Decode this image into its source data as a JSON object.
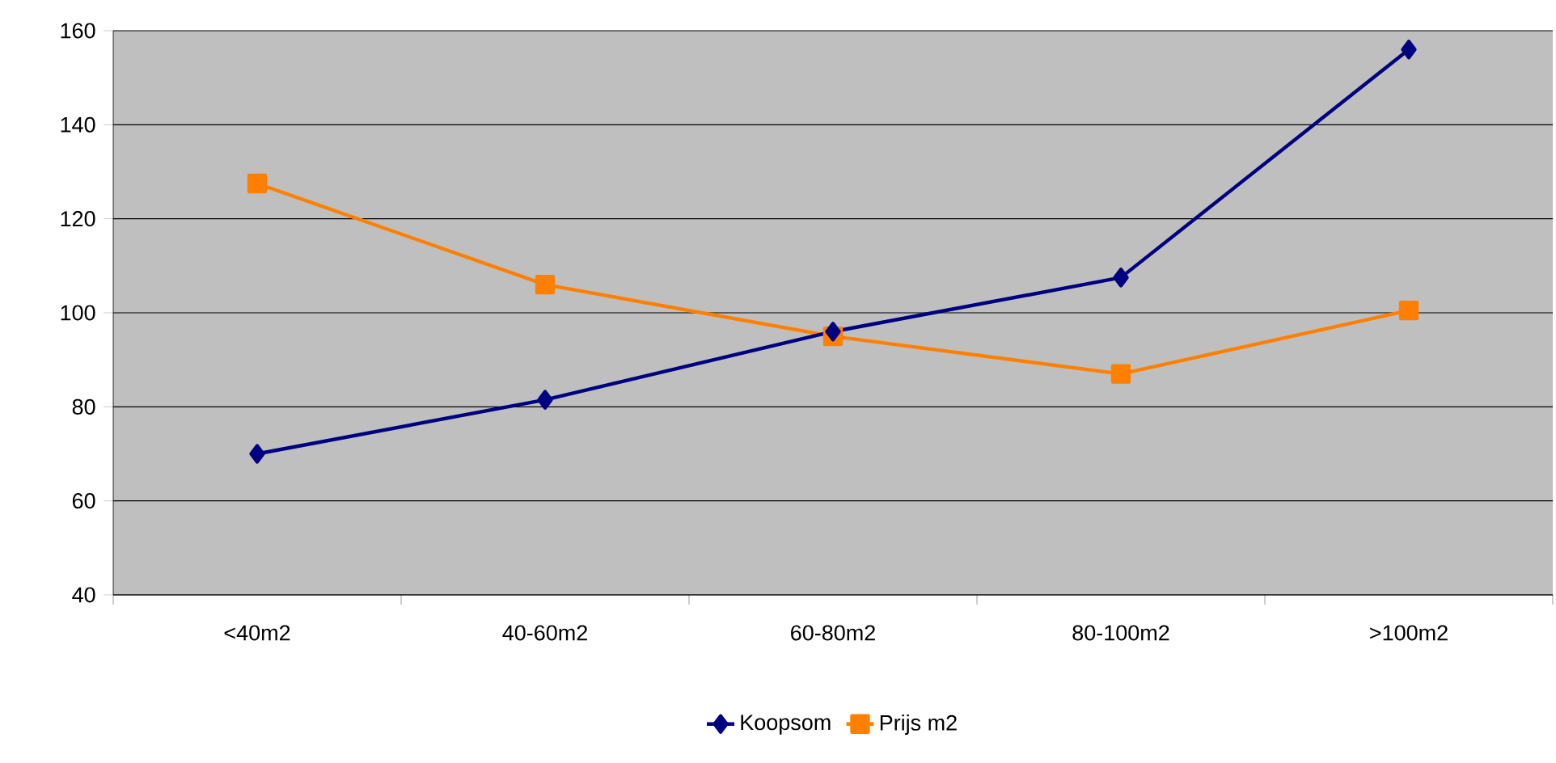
{
  "chart_data": {
    "type": "line",
    "categories": [
      "<40m2",
      "40-60m2",
      "60-80m2",
      "80-100m2",
      ">100m2"
    ],
    "series": [
      {
        "name": "Koopsom",
        "color": "#000080",
        "marker": "diamond",
        "values": [
          70,
          81.5,
          96,
          107.5,
          156
        ]
      },
      {
        "name": "Prijs m2",
        "color": "#ff8000",
        "marker": "square",
        "values": [
          127.5,
          106,
          95,
          87,
          100.5
        ]
      }
    ],
    "ylim": [
      40,
      160
    ],
    "yticks": [
      40,
      60,
      80,
      100,
      120,
      140,
      160
    ],
    "grid": "y",
    "legend": "bottom",
    "line_style": "solid"
  }
}
